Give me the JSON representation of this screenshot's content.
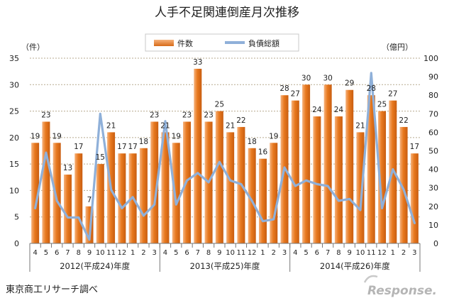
{
  "chart_data": {
    "type": "bar+line",
    "title": "人手不足関連倒産月次推移",
    "left_unit": "（件）",
    "right_unit": "（億円）",
    "legend": [
      "件数",
      "負債総額"
    ],
    "y_left_ticks": [
      0,
      5,
      10,
      15,
      20,
      25,
      30,
      35
    ],
    "y_right_ticks": [
      0,
      10,
      20,
      30,
      40,
      50,
      60,
      70,
      80,
      90,
      100
    ],
    "ylim_left": [
      0,
      35
    ],
    "ylim_right": [
      0,
      100
    ],
    "months": [
      "4",
      "5",
      "6",
      "7",
      "8",
      "9",
      "10",
      "11",
      "12",
      "1",
      "2",
      "3",
      "4",
      "5",
      "6",
      "7",
      "8",
      "9",
      "10",
      "11",
      "12",
      "1",
      "2",
      "3",
      "4",
      "5",
      "6",
      "7",
      "8",
      "9",
      "10",
      "11",
      "12",
      "1",
      "2",
      "3"
    ],
    "year_groups": [
      {
        "label": "2012(平成24)年度",
        "start": 0,
        "end": 11
      },
      {
        "label": "2013(平成25)年度",
        "start": 12,
        "end": 23
      },
      {
        "label": "2014(平成26)年度",
        "start": 24,
        "end": 35
      }
    ],
    "series": [
      {
        "name": "件数",
        "axis": "left",
        "kind": "bar",
        "color": "#e8791f",
        "values": [
          19,
          23,
          19,
          13,
          17,
          7,
          15,
          21,
          17,
          17,
          18,
          23,
          21,
          19,
          23,
          33,
          23,
          25,
          21,
          22,
          18,
          16,
          19,
          28,
          27,
          30,
          24,
          30,
          24,
          29,
          21,
          28,
          25,
          27,
          22,
          17
        ]
      },
      {
        "name": "負債総額",
        "axis": "right",
        "kind": "line",
        "color": "#8fb0d9",
        "values": [
          19,
          49,
          23,
          14,
          14,
          2,
          70,
          29,
          19,
          25,
          15,
          21,
          66,
          21,
          34,
          38,
          33,
          44,
          34,
          32,
          23,
          12,
          13,
          41,
          31,
          34,
          32,
          31,
          23,
          24,
          18,
          92,
          19,
          40,
          29,
          11
        ]
      }
    ],
    "bar_labels": [
      "19",
      "23",
      "19",
      "13",
      "17",
      "7",
      "15",
      "21",
      "17",
      "17",
      "18",
      "23",
      "21",
      "19",
      "23",
      "33",
      "23",
      "25",
      "21",
      "22",
      "18",
      "16",
      "19",
      "28",
      "27",
      "30",
      "24",
      "30",
      "24",
      "29",
      "21",
      "28",
      "25",
      "27",
      "22",
      "17"
    ]
  },
  "source": "東京商工リサーチ調べ",
  "brand": "Response."
}
